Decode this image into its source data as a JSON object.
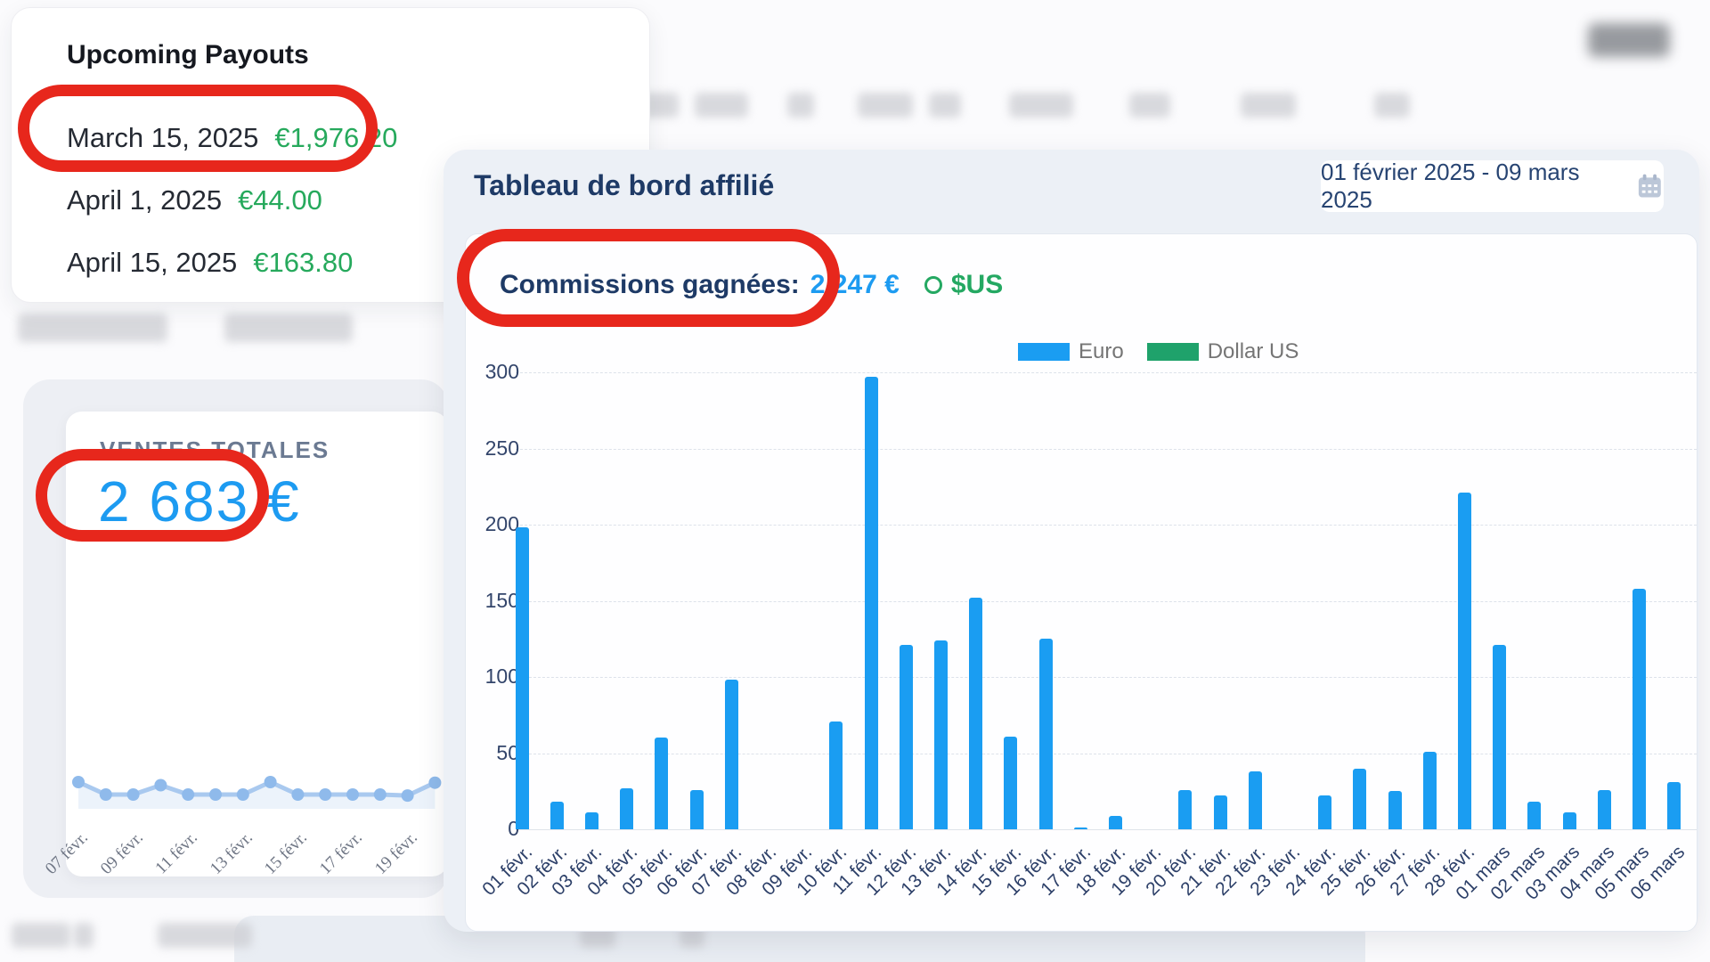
{
  "payouts_card": {
    "title": "Upcoming Payouts",
    "rows": [
      {
        "date": "March 15, 2025",
        "amount": "€1,976.20"
      },
      {
        "date": "April 1, 2025",
        "amount": "€44.00"
      },
      {
        "date": "April 15, 2025",
        "amount": "€163.80"
      }
    ]
  },
  "sales_card": {
    "label": "VENTES TOTALES",
    "value": "2 683 €",
    "sparkline": {
      "labels": [
        "07 févr.",
        "09 févr.",
        "11 févr.",
        "13 févr.",
        "15 févr.",
        "17 févr.",
        "19 févr."
      ],
      "points": [
        2,
        1,
        1,
        1.75,
        1,
        1,
        1,
        2,
        1,
        1,
        1,
        1,
        0.92,
        1.95
      ],
      "line_color": "#a9c9ef",
      "dot_color": "#8fbaeb"
    }
  },
  "dashboard": {
    "title": "Tableau de bord affilié",
    "date_range": "01 février 2025 - 09 mars 2025",
    "commissions_label": "Commissions gagnées:",
    "commissions_value": "2 247 €",
    "alt_currency": "$US"
  },
  "chart_data": {
    "type": "bar",
    "title": "",
    "xlabel": "",
    "ylabel": "",
    "ylim": [
      0,
      300
    ],
    "yticks": [
      0,
      50,
      100,
      150,
      200,
      250,
      300
    ],
    "grid": "dashed-horizontal",
    "legend_position": "top",
    "categories": [
      "01 févr.",
      "02 févr.",
      "03 févr.",
      "04 févr.",
      "05 févr.",
      "06 févr.",
      "07 févr.",
      "08 févr.",
      "09 févr.",
      "10 févr.",
      "11 févr.",
      "12 févr.",
      "13 févr.",
      "14 févr.",
      "15 févr.",
      "16 févr.",
      "17 févr.",
      "18 févr.",
      "19 févr.",
      "20 févr.",
      "21 févr.",
      "22 févr.",
      "23 févr.",
      "24 févr.",
      "25 févr.",
      "26 févr.",
      "27 févr.",
      "28 févr.",
      "01 mars",
      "02 mars",
      "03 mars",
      "04 mars",
      "05 mars",
      "06 mars"
    ],
    "series": [
      {
        "name": "Euro",
        "color": "#1a9df2",
        "values": [
          198,
          18,
          11,
          27,
          60,
          26,
          98,
          0,
          0,
          71,
          297,
          121,
          124,
          152,
          61,
          125,
          1,
          9,
          0,
          26,
          22,
          38,
          0,
          22,
          40,
          25,
          51,
          221,
          121,
          18,
          11,
          26,
          158,
          31
        ]
      },
      {
        "name": "Dollar US",
        "color": "#1fa26b",
        "values": [
          0,
          0,
          0,
          0,
          0,
          0,
          0,
          0,
          0,
          0,
          0,
          0,
          0,
          0,
          0,
          0,
          0,
          0,
          0,
          0,
          0,
          0,
          0,
          0,
          0,
          0,
          0,
          0,
          0,
          0,
          0,
          0,
          0,
          0
        ]
      }
    ],
    "annotation_color": "#e7271c"
  }
}
